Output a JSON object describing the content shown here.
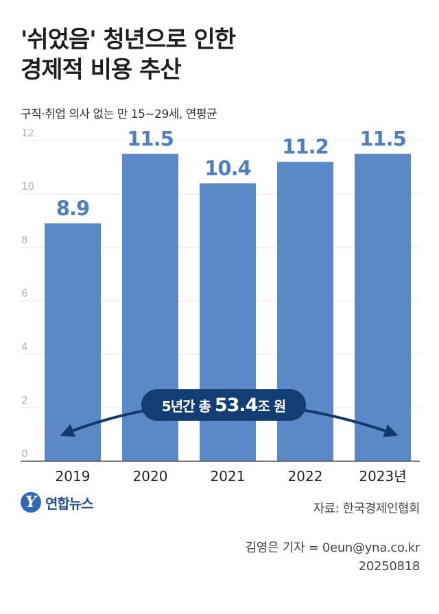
{
  "title_lines": [
    "'쉬었음' 청년으로 인한",
    "경제적 비용 추산"
  ],
  "subtitle": "구직·취업 의사 없는 만 15~29세, 연평균",
  "chart_data": {
    "type": "bar",
    "categories": [
      "2019",
      "2020",
      "2021",
      "2022",
      "2023년"
    ],
    "values": [
      8.9,
      11.5,
      10.4,
      11.2,
      11.5
    ],
    "value_labels": [
      "8.9",
      "11.5",
      "10.4",
      "11.2",
      "11.5"
    ],
    "y_ticks": [
      0,
      2,
      4,
      6,
      8,
      10,
      12
    ],
    "ylim": [
      0,
      12
    ],
    "grid": true,
    "annotation": {
      "prefix": "5년간 총 ",
      "value": "53.4",
      "suffix": "조 원"
    },
    "colors": {
      "bar": "#5b88c6",
      "label": "#4f7fc3",
      "annotation_bg": "#123e73",
      "arrow": "#0f3a70",
      "grid": "#e6e6e6"
    }
  },
  "logo": {
    "mark": "Y",
    "text": "연합뉴스"
  },
  "source": "자료: 한국경제인협회",
  "credit": {
    "reporter": "김영은 기자 = 0eun@yna.co.kr",
    "date": "20250818"
  }
}
